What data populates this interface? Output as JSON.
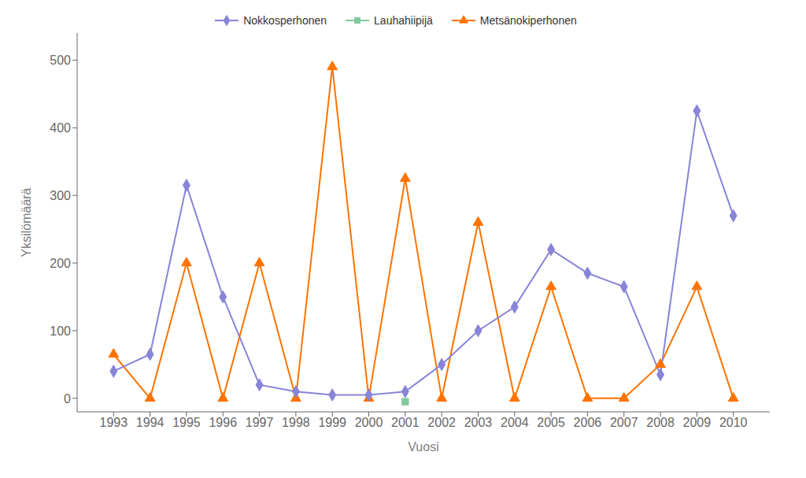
{
  "chart_data": {
    "type": "line",
    "x": [
      1993,
      1994,
      1995,
      1996,
      1997,
      1998,
      1999,
      2000,
      2001,
      2002,
      2003,
      2004,
      2005,
      2006,
      2007,
      2008,
      2009,
      2010
    ],
    "series": [
      {
        "name": "Nokkosperhonen",
        "color": "#8884d8",
        "marker": "diamond",
        "values": [
          40,
          65,
          315,
          150,
          20,
          10,
          5,
          5,
          10,
          50,
          100,
          135,
          220,
          185,
          165,
          35,
          425,
          270
        ]
      },
      {
        "name": "Lauhahiipijä",
        "color": "#82ca9d",
        "marker": "square",
        "values": [
          null,
          null,
          null,
          null,
          null,
          null,
          null,
          null,
          -5,
          null,
          null,
          null,
          null,
          null,
          null,
          null,
          null,
          null
        ]
      },
      {
        "name": "Metsänokiperhonen",
        "color": "#ff7300",
        "marker": "triangle",
        "values": [
          65,
          0,
          200,
          0,
          200,
          0,
          490,
          0,
          325,
          0,
          260,
          0,
          165,
          0,
          0,
          50,
          165,
          0
        ]
      }
    ],
    "xlabel": "Vuosi",
    "ylabel": "Yksilömäärä",
    "xlim": [
      1992,
      2011
    ],
    "xticks": [
      1993,
      1994,
      1995,
      1996,
      1997,
      1998,
      1999,
      2000,
      2001,
      2002,
      2003,
      2004,
      2005,
      2006,
      2007,
      2008,
      2009,
      2010
    ],
    "ylim": [
      -20,
      540
    ],
    "yticks": [
      0,
      100,
      200,
      300,
      400,
      500
    ],
    "grid": false,
    "legend": "upper center"
  }
}
